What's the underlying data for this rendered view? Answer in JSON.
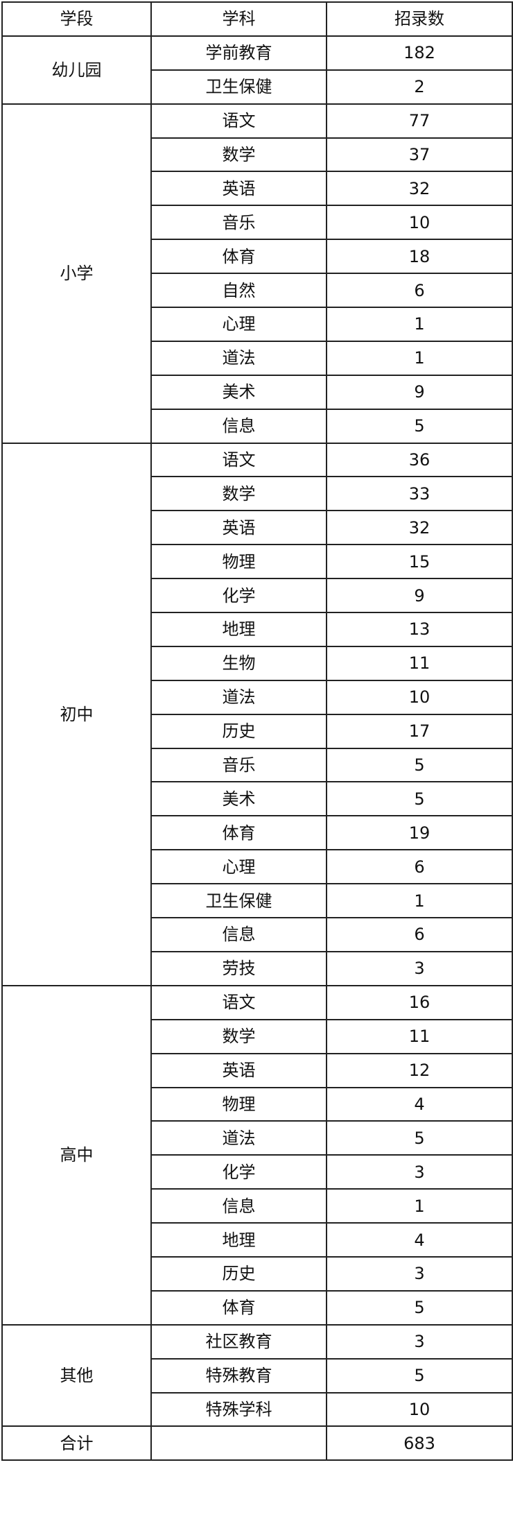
{
  "headers": [
    "学段",
    "学科",
    "招录数"
  ],
  "groups": [
    {
      "stage": "幼儿园",
      "rows": [
        [
          "学前教育",
          "182"
        ],
        [
          "卫生保健",
          "2"
        ]
      ]
    },
    {
      "stage": "小学",
      "rows": [
        [
          "语文",
          "77"
        ],
        [
          "数学",
          "37"
        ],
        [
          "英语",
          "32"
        ],
        [
          "音乐",
          "10"
        ],
        [
          "体育",
          "18"
        ],
        [
          "自然",
          "6"
        ],
        [
          "心理",
          "1"
        ],
        [
          "道法",
          "1"
        ],
        [
          "美术",
          "9"
        ],
        [
          "信息",
          "5"
        ]
      ]
    },
    {
      "stage": "初中",
      "rows": [
        [
          "语文",
          "36"
        ],
        [
          "数学",
          "33"
        ],
        [
          "英语",
          "32"
        ],
        [
          "物理",
          "15"
        ],
        [
          "化学",
          "9"
        ],
        [
          "地理",
          "13"
        ],
        [
          "生物",
          "11"
        ],
        [
          "道法",
          "10"
        ],
        [
          "历史",
          "17"
        ],
        [
          "音乐",
          "5"
        ],
        [
          "美术",
          "5"
        ],
        [
          "体育",
          "19"
        ],
        [
          "心理",
          "6"
        ],
        [
          "卫生保健",
          "1"
        ],
        [
          "信息",
          "6"
        ],
        [
          "劳技",
          "3"
        ]
      ]
    },
    {
      "stage": "高中",
      "rows": [
        [
          "语文",
          "16"
        ],
        [
          "数学",
          "11"
        ],
        [
          "英语",
          "12"
        ],
        [
          "物理",
          "4"
        ],
        [
          "道法",
          "5"
        ],
        [
          "化学",
          "3"
        ],
        [
          "信息",
          "1"
        ],
        [
          "地理",
          "4"
        ],
        [
          "历史",
          "3"
        ],
        [
          "体育",
          "5"
        ]
      ]
    },
    {
      "stage": "其他",
      "rows": [
        [
          "社区教育",
          "3"
        ],
        [
          "特殊教育",
          "5"
        ],
        [
          "特殊学科",
          "10"
        ]
      ]
    }
  ],
  "total": {
    "label": "合计",
    "subject": "",
    "count": "683"
  }
}
